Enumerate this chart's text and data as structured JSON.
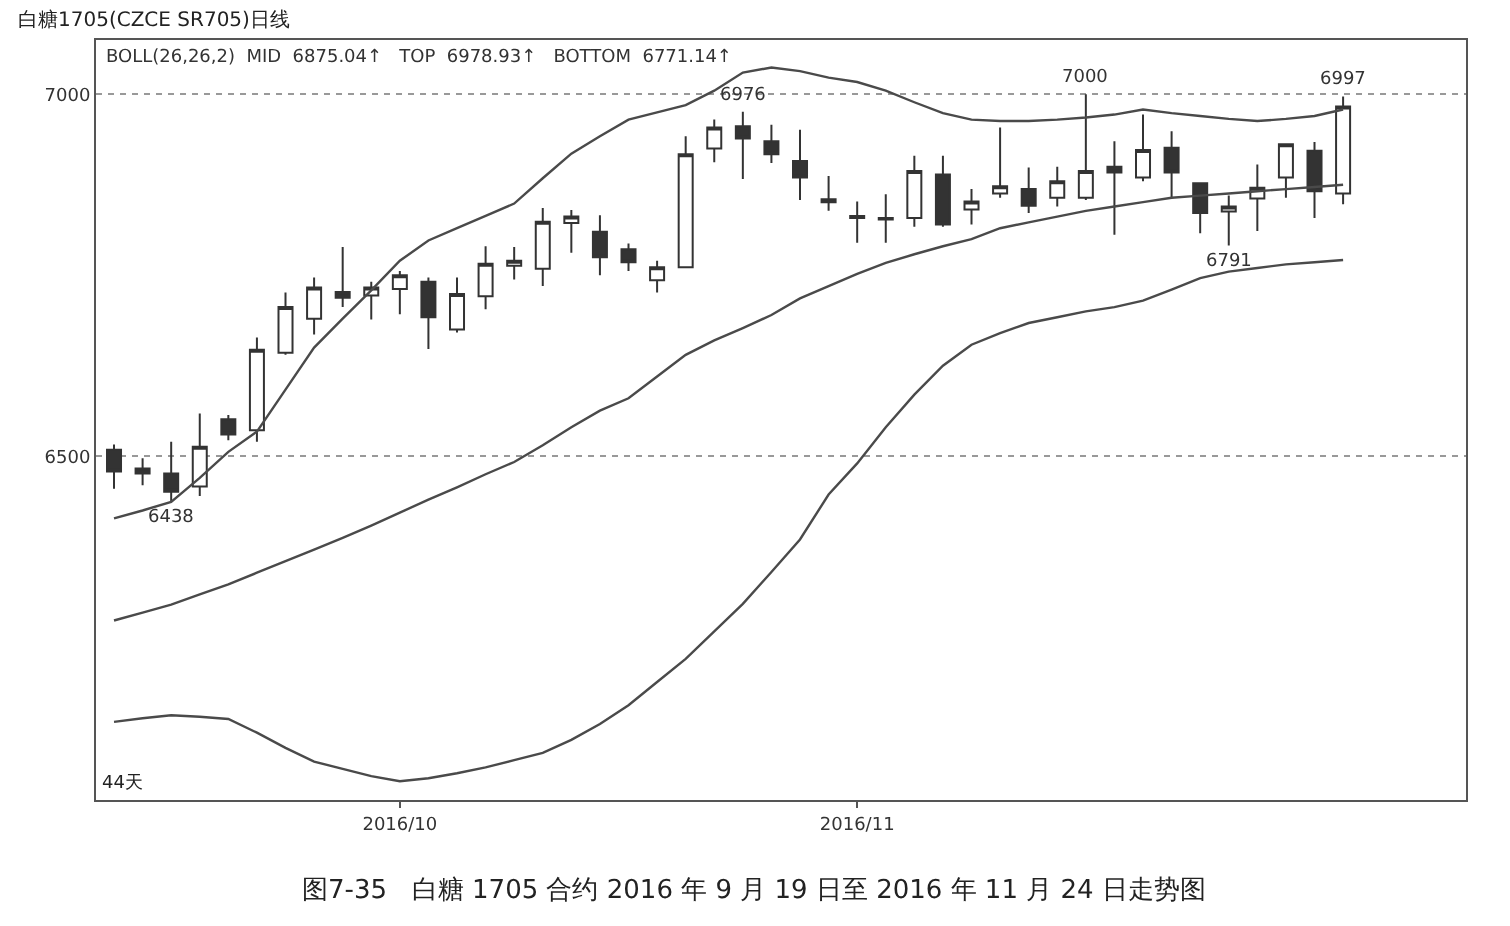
{
  "chart_data": {
    "type": "candlestick",
    "title": "白糖1705(CZCE SR705)日线",
    "subtitle": "BOLL(26,26,2)  MID  6875.04↑   TOP  6978.93↑   BOTTOM  6771.14↑",
    "categories": [
      null,
      null,
      null,
      null,
      null,
      null,
      null,
      null,
      null,
      null,
      "2016/10",
      null,
      null,
      null,
      null,
      null,
      null,
      null,
      null,
      null,
      null,
      null,
      null,
      null,
      null,
      null,
      "2016/11",
      null,
      null,
      null,
      null,
      null,
      null,
      null,
      null,
      null,
      null,
      null,
      null,
      null,
      null,
      null,
      null,
      null
    ],
    "ohlc": [
      [
        6509,
        6516,
        6455,
        6479
      ],
      [
        6483,
        6497,
        6460,
        6476
      ],
      [
        6476,
        6520,
        6438,
        6451
      ],
      [
        6458,
        6559,
        6445,
        6513
      ],
      [
        6551,
        6557,
        6522,
        6530
      ],
      [
        6536,
        6664,
        6520,
        6647
      ],
      [
        6643,
        6726,
        6640,
        6706
      ],
      [
        6690,
        6747,
        6668,
        6733
      ],
      [
        6727,
        6789,
        6706,
        6719
      ],
      [
        6722,
        6741,
        6689,
        6733
      ],
      [
        6731,
        6756,
        6696,
        6750
      ],
      [
        6741,
        6747,
        6648,
        6692
      ],
      [
        6675,
        6747,
        6671,
        6724
      ],
      [
        6721,
        6790,
        6703,
        6766
      ],
      [
        6763,
        6789,
        6744,
        6770
      ],
      [
        6759,
        6843,
        6735,
        6824
      ],
      [
        6822,
        6840,
        6781,
        6831
      ],
      [
        6810,
        6833,
        6750,
        6775
      ],
      [
        6786,
        6794,
        6756,
        6768
      ],
      [
        6743,
        6770,
        6726,
        6761
      ],
      [
        6761,
        6942,
        6761,
        6917
      ],
      [
        6925,
        6965,
        6906,
        6954
      ],
      [
        6956,
        6976,
        6883,
        6939
      ],
      [
        6935,
        6958,
        6905,
        6917
      ],
      [
        6908,
        6951,
        6854,
        6885
      ],
      [
        6855,
        6887,
        6839,
        6851
      ],
      [
        6832,
        6852,
        6795,
        6829
      ],
      [
        6829,
        6862,
        6795,
        6827
      ],
      [
        6829,
        6915,
        6817,
        6894
      ],
      [
        6889,
        6915,
        6817,
        6820
      ],
      [
        6841,
        6869,
        6820,
        6852
      ],
      [
        6863,
        6954,
        6857,
        6873
      ],
      [
        6869,
        6899,
        6836,
        6846
      ],
      [
        6857,
        6900,
        6845,
        6880
      ],
      [
        6857,
        7000,
        6854,
        6894
      ],
      [
        6900,
        6935,
        6806,
        6892
      ],
      [
        6885,
        6972,
        6880,
        6923
      ],
      [
        6926,
        6949,
        6857,
        6892
      ],
      [
        6877,
        6877,
        6808,
        6836
      ],
      [
        6838,
        6860,
        6791,
        6845
      ],
      [
        6856,
        6903,
        6811,
        6871
      ],
      [
        6885,
        6931,
        6857,
        6931
      ],
      [
        6922,
        6934,
        6829,
        6866
      ],
      [
        6863,
        6997,
        6848,
        6983
      ]
    ],
    "series": [
      {
        "type": "line",
        "color": "#4a4a4a",
        "values": [
          6414,
          6425,
          6437,
          6470,
          6506,
          6534,
          6592,
          6650,
          6690,
          6729,
          6770,
          6798,
          6815,
          6832,
          6849,
          6884,
          6918,
          6942,
          6965,
          6975,
          6985,
          7005,
          7030,
          7037,
          7032,
          7023,
          7017,
          7005,
          6989,
          6974,
          6965,
          6963,
          6963,
          6965,
          6968,
          6972,
          6979,
          6974,
          6970,
          6966,
          6963,
          6966,
          6970,
          6979
        ]
      },
      {
        "type": "line",
        "color": "#4a4a4a",
        "values": [
          6273,
          6284,
          6295,
          6309,
          6323,
          6339,
          6355,
          6371,
          6387,
          6404,
          6422,
          6440,
          6457,
          6475,
          6492,
          6515,
          6540,
          6563,
          6580,
          6610,
          6640,
          6660,
          6677,
          6695,
          6718,
          6735,
          6752,
          6767,
          6779,
          6790,
          6800,
          6815,
          6823,
          6831,
          6839,
          6845,
          6851,
          6857,
          6860,
          6863,
          6866,
          6869,
          6872,
          6875
        ]
      },
      {
        "type": "line",
        "color": "#4a4a4a",
        "values": [
          6133,
          6138,
          6142,
          6140,
          6137,
          6118,
          6097,
          6078,
          6068,
          6058,
          6051,
          6055,
          6062,
          6070,
          6080,
          6090,
          6108,
          6130,
          6156,
          6188,
          6220,
          6258,
          6296,
          6340,
          6385,
          6447,
          6490,
          6540,
          6585,
          6625,
          6654,
          6670,
          6684,
          6692,
          6700,
          6706,
          6715,
          6730,
          6746,
          6755,
          6760,
          6765,
          6768,
          6771
        ]
      }
    ],
    "ylim": [
      6025,
      7075
    ],
    "yticks": [
      6500,
      7000
    ],
    "grid": "y",
    "annotations": [
      {
        "text": "6438",
        "y": 6438
      },
      {
        "text": "6976",
        "y": 6976
      },
      {
        "text": "7000",
        "y": 7000
      },
      {
        "text": "6791",
        "y": 6791
      },
      {
        "text": "6997",
        "y": 6997
      },
      "44天",
      "图7-35   白糖 1705 合约 2016 年 9 月 19 日至 2016 年 11 月 24 日走势图"
    ]
  }
}
